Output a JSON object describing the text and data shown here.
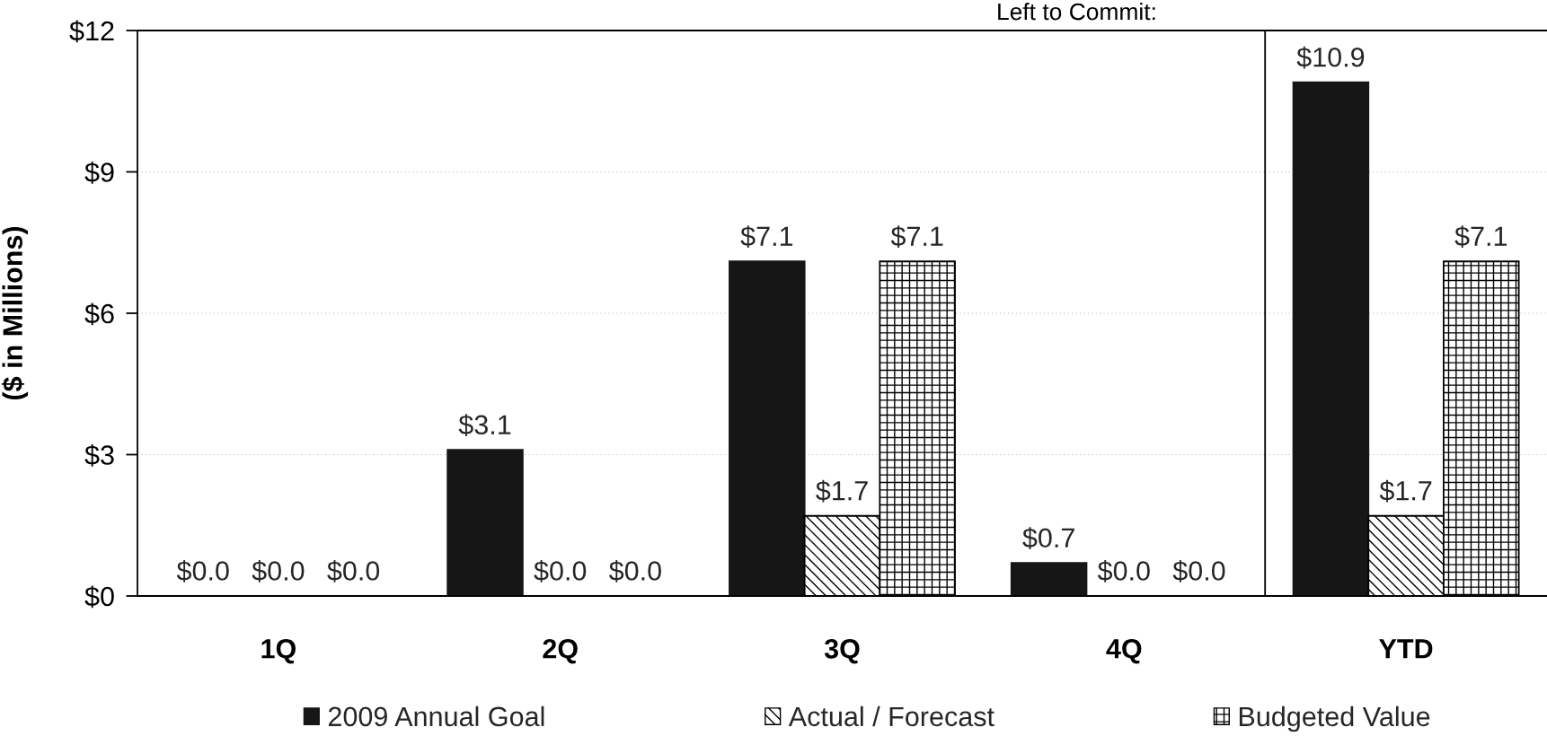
{
  "chart_data": [
    {
      "type": "bar",
      "categories": [
        "1Q",
        "2Q",
        "3Q",
        "4Q"
      ],
      "series": [
        {
          "name": "2009 Annual Goal",
          "color": "#161616",
          "values": [
            0.0,
            3.1,
            7.1,
            0.7
          ],
          "value_labels": [
            "$0.0",
            "$3.1",
            "$7.1",
            "$0.7"
          ]
        },
        {
          "name": "Actual / Forecast",
          "color": "#000000",
          "values": [
            0.0,
            0.0,
            1.7,
            0.0
          ],
          "value_labels": [
            "$0.0",
            "$0.0",
            "$1.7",
            "$0.0"
          ]
        },
        {
          "name": "Budgeted Value",
          "color": "#000000",
          "values": [
            0.0,
            0.0,
            7.1,
            0.0
          ],
          "value_labels": [
            "$0.0",
            "$0.0",
            "$7.1",
            "$0.0"
          ]
        }
      ],
      "ylabel": "($ in Millions)",
      "ylim": [
        0,
        12
      ],
      "yticks": [
        {
          "value": 0,
          "label": "$0"
        },
        {
          "value": 3,
          "label": "$3"
        },
        {
          "value": 6,
          "label": "$6"
        },
        {
          "value": 9,
          "label": "$9"
        },
        {
          "value": 12,
          "label": "$12"
        }
      ],
      "grid": "y",
      "legend": "bottom",
      "annotations": [
        "Left to Commit:"
      ]
    },
    {
      "type": "bar",
      "categories": [
        "YTD"
      ],
      "series": [
        {
          "color": "#161616",
          "values": [
            10.9
          ],
          "value_labels": [
            "$10.9"
          ]
        },
        {
          "color": "#000000",
          "values": [
            1.7
          ],
          "value_labels": [
            "$1.7"
          ]
        },
        {
          "color": "#000000",
          "values": [
            7.1
          ],
          "value_labels": [
            "$7.1"
          ]
        }
      ],
      "ylim": [
        0,
        12
      ],
      "yticks": [
        0,
        3,
        6,
        9,
        12
      ],
      "tick_labels": "x",
      "grid": "y"
    }
  ]
}
